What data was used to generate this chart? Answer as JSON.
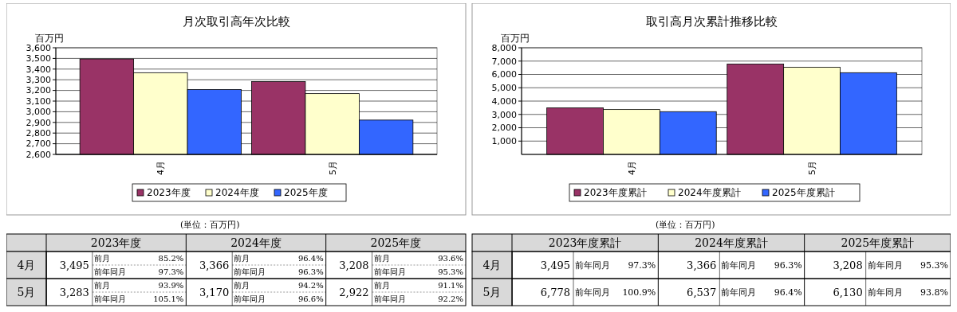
{
  "chart_data": [
    {
      "type": "bar",
      "title": "月次取引高年次比較",
      "ylabel": "百万円",
      "categories": [
        "4月",
        "5月"
      ],
      "series": [
        {
          "name": "2023年度",
          "color": "#993366",
          "values": [
            3495,
            3283
          ]
        },
        {
          "name": "2024年度",
          "color": "#ffffcc",
          "values": [
            3366,
            3170
          ]
        },
        {
          "name": "2025年度",
          "color": "#3366ff",
          "values": [
            3208,
            2922
          ]
        }
      ],
      "ylim": [
        2600,
        3600
      ],
      "yticks": [
        {
          "value": 2600,
          "label": "2,600"
        },
        {
          "value": 2700,
          "label": "2,700"
        },
        {
          "value": 2800,
          "label": "2,800"
        },
        {
          "value": 2900,
          "label": "2,900"
        },
        {
          "value": 3000,
          "label": "3,000"
        },
        {
          "value": 3100,
          "label": "3,100"
        },
        {
          "value": 3200,
          "label": "3,200"
        },
        {
          "value": 3300,
          "label": "3,300"
        },
        {
          "value": 3400,
          "label": "3,400"
        },
        {
          "value": 3500,
          "label": "3,500"
        },
        {
          "value": 3600,
          "label": "3,600"
        }
      ],
      "grid": "y",
      "legend": "bottom",
      "annotations": [
        "(単位：百万円)"
      ]
    },
    {
      "type": "bar",
      "title": "取引高月次累計推移比較",
      "ylabel": "百万円",
      "categories": [
        "4月",
        "5月"
      ],
      "series": [
        {
          "name": "2023年度累計",
          "color": "#993366",
          "values": [
            3495,
            6778
          ]
        },
        {
          "name": "2024年度累計",
          "color": "#ffffcc",
          "values": [
            3366,
            6537
          ]
        },
        {
          "name": "2025年度累計",
          "color": "#3366ff",
          "values": [
            3208,
            6130
          ]
        }
      ],
      "ylim": [
        0,
        8000
      ],
      "yticks": [
        {
          "value": 1000,
          "label": "1,000"
        },
        {
          "value": 2000,
          "label": "2,000"
        },
        {
          "value": 3000,
          "label": "3,000"
        },
        {
          "value": 4000,
          "label": "4,000"
        },
        {
          "value": 5000,
          "label": "5,000"
        },
        {
          "value": 6000,
          "label": "6,000"
        },
        {
          "value": 7000,
          "label": "7,000"
        },
        {
          "value": 8000,
          "label": "8,000"
        }
      ],
      "grid": "y",
      "legend": "bottom",
      "annotations": [
        "(単位：百万円)"
      ]
    },
    {
      "type": "other",
      "categories": [
        "2023年度",
        "2024年度",
        "2025年度"
      ],
      "y_categories": [
        "4月",
        "5月"
      ],
      "annotations": [
        "3,495",
        "前月",
        "85.2%",
        "前年同月",
        "97.3%",
        "3,366",
        "前月",
        "96.4%",
        "前年同月",
        "96.3%",
        "3,208",
        "前月",
        "93.6%",
        "前年同月",
        "95.3%",
        "3,283",
        "前月",
        "93.9%",
        "前年同月",
        "105.1%",
        "3,170",
        "前月",
        "94.2%",
        "前年同月",
        "96.6%",
        "2,922",
        "前月",
        "91.1%",
        "前年同月",
        "92.2%"
      ]
    },
    {
      "type": "other",
      "categories": [
        "2023年度累計",
        "2024年度累計",
        "2025年度累計"
      ],
      "y_categories": [
        "4月",
        "5月"
      ],
      "annotations": [
        "3,495",
        "前年同月",
        "97.3%",
        "3,366",
        "前年同月",
        "96.3%",
        "3,208",
        "前年同月",
        "95.3%",
        "6,778",
        "前年同月",
        "100.9%",
        "6,537",
        "前年同月",
        "96.4%",
        "6,130",
        "前年同月",
        "93.8%"
      ]
    }
  ]
}
